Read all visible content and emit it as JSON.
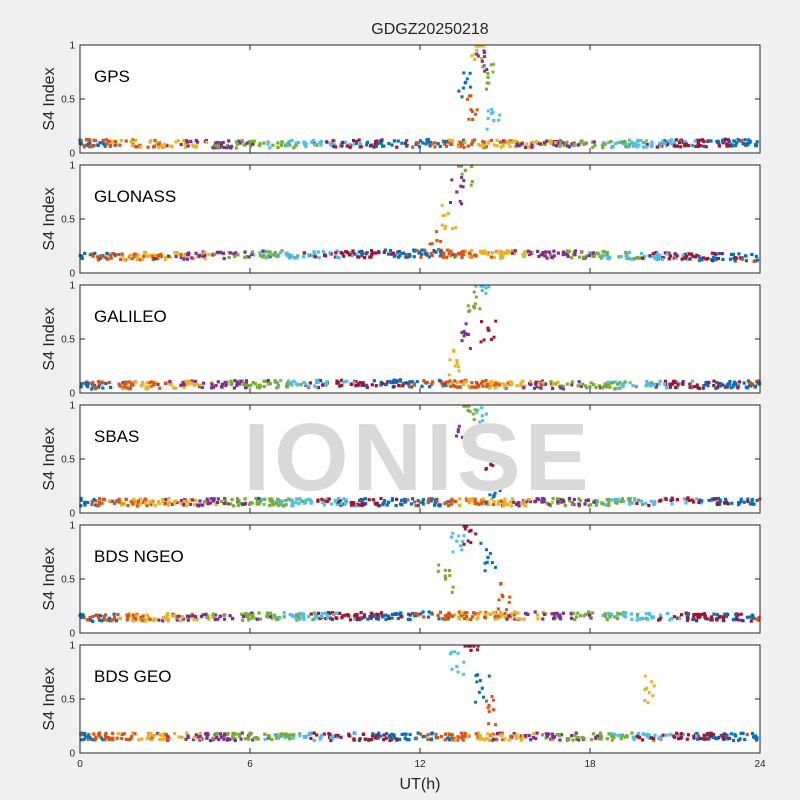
{
  "chart_data": {
    "type": "scatter",
    "title": "GDGZ20250218",
    "xlabel": "UT(h)",
    "ylabel": "S4 Index",
    "xlim": [
      0,
      24
    ],
    "ylim": [
      0,
      1
    ],
    "x_ticks": [
      "0",
      "6",
      "12",
      "18",
      "24"
    ],
    "y_ticks": [
      "0",
      "0.5",
      "1"
    ],
    "watermark": "IONISE",
    "colors": [
      "#0072bd",
      "#d95319",
      "#edb120",
      "#7e2f8e",
      "#77ac30",
      "#4dbeee",
      "#a2142f"
    ],
    "panels": [
      {
        "label": "GPS",
        "background": [
          {
            "x": 0,
            "y": 0.09
          },
          {
            "x": 6,
            "y": 0.08
          },
          {
            "x": 12,
            "y": 0.09
          },
          {
            "x": 18,
            "y": 0.08
          },
          {
            "x": 24,
            "y": 0.1
          }
        ],
        "burst": [
          {
            "x": 13.6,
            "y": 0.65
          },
          {
            "x": 13.8,
            "y": 0.4
          },
          {
            "x": 14.0,
            "y": 0.95
          },
          {
            "x": 14.2,
            "y": 0.85
          },
          {
            "x": 14.4,
            "y": 0.7
          },
          {
            "x": 14.6,
            "y": 0.3
          }
        ]
      },
      {
        "label": "GLONASS",
        "background": [
          {
            "x": 0,
            "y": 0.15
          },
          {
            "x": 6,
            "y": 0.17
          },
          {
            "x": 12,
            "y": 0.18
          },
          {
            "x": 18,
            "y": 0.17
          },
          {
            "x": 24,
            "y": 0.14
          }
        ],
        "burst": [
          {
            "x": 12.6,
            "y": 0.3
          },
          {
            "x": 13.0,
            "y": 0.55
          },
          {
            "x": 13.3,
            "y": 0.75
          },
          {
            "x": 13.6,
            "y": 0.95
          }
        ]
      },
      {
        "label": "GALILEO",
        "background": [
          {
            "x": 0,
            "y": 0.07
          },
          {
            "x": 6,
            "y": 0.08
          },
          {
            "x": 12,
            "y": 0.09
          },
          {
            "x": 18,
            "y": 0.07
          },
          {
            "x": 24,
            "y": 0.08
          }
        ],
        "burst": [
          {
            "x": 13.3,
            "y": 0.3
          },
          {
            "x": 13.6,
            "y": 0.55
          },
          {
            "x": 13.9,
            "y": 0.8
          },
          {
            "x": 14.2,
            "y": 0.95
          },
          {
            "x": 14.4,
            "y": 0.6
          }
        ]
      },
      {
        "label": "SBAS",
        "background": [
          {
            "x": 0,
            "y": 0.1
          },
          {
            "x": 6,
            "y": 0.1
          },
          {
            "x": 12,
            "y": 0.1
          },
          {
            "x": 18,
            "y": 0.1
          },
          {
            "x": 24,
            "y": 0.11
          }
        ],
        "burst": [
          {
            "x": 13.5,
            "y": 0.7
          },
          {
            "x": 13.7,
            "y": 0.95
          },
          {
            "x": 14.2,
            "y": 0.9
          },
          {
            "x": 14.5,
            "y": 0.45
          },
          {
            "x": 14.6,
            "y": 0.15
          }
        ]
      },
      {
        "label": "BDS NGEO",
        "background": [
          {
            "x": 0,
            "y": 0.14
          },
          {
            "x": 6,
            "y": 0.15
          },
          {
            "x": 12,
            "y": 0.16
          },
          {
            "x": 18,
            "y": 0.16
          },
          {
            "x": 24,
            "y": 0.14
          }
        ],
        "burst": [
          {
            "x": 12.9,
            "y": 0.5
          },
          {
            "x": 13.3,
            "y": 0.85
          },
          {
            "x": 13.8,
            "y": 0.95
          },
          {
            "x": 14.4,
            "y": 0.7
          },
          {
            "x": 14.9,
            "y": 0.35
          }
        ]
      },
      {
        "label": "BDS GEO",
        "background": [
          {
            "x": 0,
            "y": 0.15
          },
          {
            "x": 6,
            "y": 0.15
          },
          {
            "x": 12,
            "y": 0.15
          },
          {
            "x": 18,
            "y": 0.15
          },
          {
            "x": 24,
            "y": 0.15
          }
        ],
        "burst": [
          {
            "x": 13.3,
            "y": 0.8
          },
          {
            "x": 13.8,
            "y": 0.95
          },
          {
            "x": 14.2,
            "y": 0.6
          },
          {
            "x": 14.6,
            "y": 0.4
          },
          {
            "x": 20.0,
            "y": 0.6
          }
        ]
      }
    ]
  }
}
